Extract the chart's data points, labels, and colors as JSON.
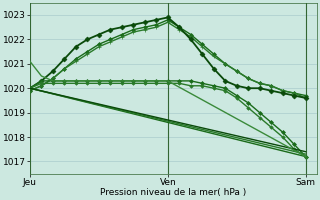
{
  "bg_color": "#cce8e0",
  "grid_color": "#aacccc",
  "xlabel": "Pression niveau de la mer( hPa )",
  "xtick_labels": [
    "Jeu",
    "Ven",
    "Sam"
  ],
  "xtick_positions": [
    0,
    12,
    24
  ],
  "ylim": [
    1016.5,
    1023.5
  ],
  "yticks": [
    1017,
    1018,
    1019,
    1020,
    1021,
    1022,
    1023
  ],
  "xlim": [
    0,
    25
  ],
  "vline_positions": [
    0,
    12,
    24
  ],
  "vline_color": "#336633",
  "series": [
    {
      "x": [
        0,
        1,
        2,
        3,
        4,
        5,
        6,
        7,
        8,
        9,
        10,
        11,
        12,
        13,
        14,
        15,
        16,
        17,
        18,
        19,
        20,
        21,
        22,
        23,
        24
      ],
      "y": [
        1019.9,
        1020.1,
        1020.4,
        1020.8,
        1021.2,
        1021.5,
        1021.8,
        1022.0,
        1022.2,
        1022.4,
        1022.5,
        1022.6,
        1022.8,
        1022.5,
        1022.2,
        1021.8,
        1021.4,
        1021.0,
        1020.7,
        1020.4,
        1020.2,
        1020.1,
        1019.9,
        1019.8,
        1019.7
      ],
      "color": "#1a6b1a",
      "lw": 1.0,
      "marker": "D",
      "ms": 2.0
    },
    {
      "x": [
        0,
        1,
        2,
        3,
        4,
        5,
        6,
        7,
        8,
        9,
        10,
        11,
        12,
        13,
        14,
        15,
        16,
        17,
        18,
        19,
        20,
        21,
        22,
        23,
        24
      ],
      "y": [
        1019.9,
        1020.1,
        1020.4,
        1020.8,
        1021.1,
        1021.4,
        1021.7,
        1021.9,
        1022.1,
        1022.3,
        1022.4,
        1022.5,
        1022.7,
        1022.4,
        1022.1,
        1021.7,
        1021.3,
        1021.0,
        1020.7,
        1020.4,
        1020.2,
        1020.1,
        1019.9,
        1019.8,
        1019.6
      ],
      "color": "#2a7a2a",
      "lw": 1.0,
      "marker": "+",
      "ms": 3.0
    },
    {
      "x": [
        0,
        1,
        2,
        3,
        4,
        5,
        6,
        7,
        8,
        9,
        10,
        11,
        12,
        13,
        14,
        15,
        16,
        17,
        18,
        19,
        20,
        21,
        22,
        23,
        24
      ],
      "y": [
        1020.0,
        1020.3,
        1020.7,
        1021.2,
        1021.7,
        1022.0,
        1022.2,
        1022.4,
        1022.5,
        1022.6,
        1022.7,
        1022.8,
        1022.9,
        1022.5,
        1022.0,
        1021.4,
        1020.8,
        1020.3,
        1020.1,
        1020.0,
        1020.0,
        1019.9,
        1019.8,
        1019.7,
        1019.6
      ],
      "color": "#0a4a0a",
      "lw": 1.3,
      "marker": "D",
      "ms": 2.5
    },
    {
      "x": [
        0,
        1,
        2,
        3,
        4,
        5,
        6,
        7,
        8,
        9,
        10,
        11,
        12,
        13,
        14,
        15,
        16,
        17,
        18,
        19,
        20,
        21,
        22,
        23,
        24
      ],
      "y": [
        1020.0,
        1020.3,
        1020.3,
        1020.3,
        1020.3,
        1020.3,
        1020.3,
        1020.3,
        1020.3,
        1020.3,
        1020.3,
        1020.3,
        1020.3,
        1020.3,
        1020.3,
        1020.2,
        1020.1,
        1020.0,
        1019.7,
        1019.4,
        1019.0,
        1018.6,
        1018.2,
        1017.7,
        1017.2
      ],
      "color": "#1a6b1a",
      "lw": 1.0,
      "marker": "D",
      "ms": 2.0
    },
    {
      "x": [
        0,
        1,
        2,
        3,
        4,
        5,
        6,
        7,
        8,
        9,
        10,
        11,
        12,
        13,
        14,
        15,
        16,
        17,
        18,
        19,
        20,
        21,
        22,
        23,
        24
      ],
      "y": [
        1020.0,
        1020.2,
        1020.2,
        1020.2,
        1020.2,
        1020.2,
        1020.2,
        1020.2,
        1020.2,
        1020.2,
        1020.2,
        1020.2,
        1020.2,
        1020.2,
        1020.1,
        1020.1,
        1020.0,
        1019.9,
        1019.6,
        1019.2,
        1018.8,
        1018.4,
        1018.0,
        1017.5,
        1017.2
      ],
      "color": "#2a7a2a",
      "lw": 1.0,
      "marker": "D",
      "ms": 1.8
    },
    {
      "x": [
        0,
        24
      ],
      "y": [
        1020.0,
        1017.2
      ],
      "color": "#1a6b1a",
      "lw": 1.0,
      "marker": null,
      "ms": 0
    },
    {
      "x": [
        0,
        24
      ],
      "y": [
        1020.0,
        1017.3
      ],
      "color": "#2a7a2a",
      "lw": 1.0,
      "marker": null,
      "ms": 0
    },
    {
      "x": [
        0,
        24
      ],
      "y": [
        1020.0,
        1017.4
      ],
      "color": "#0a4a0a",
      "lw": 1.0,
      "marker": null,
      "ms": 0
    },
    {
      "x": [
        0,
        1,
        2,
        3,
        4,
        5,
        6,
        7,
        8,
        9,
        10,
        11,
        12,
        24
      ],
      "y": [
        1021.1,
        1020.5,
        1020.3,
        1020.3,
        1020.3,
        1020.3,
        1020.3,
        1020.3,
        1020.3,
        1020.3,
        1020.3,
        1020.3,
        1020.3,
        1017.2
      ],
      "color": "#3a8a3a",
      "lw": 1.0,
      "marker": null,
      "ms": 0
    }
  ]
}
